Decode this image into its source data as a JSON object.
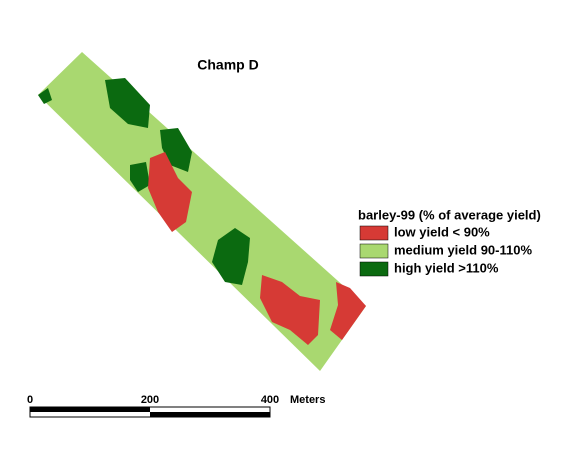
{
  "map": {
    "title": "Champ D",
    "legend": {
      "title": "barley-99 (% of average yield)",
      "items": [
        {
          "label": "low yield < 90%",
          "color": "#d63a35"
        },
        {
          "label": "medium yield 90-110%",
          "color": "#a9d870"
        },
        {
          "label": "high yield >110%",
          "color": "#0b6a10"
        }
      ]
    },
    "scale_bar": {
      "labels": [
        "0",
        "200",
        "400"
      ],
      "unit": "Meters"
    }
  }
}
